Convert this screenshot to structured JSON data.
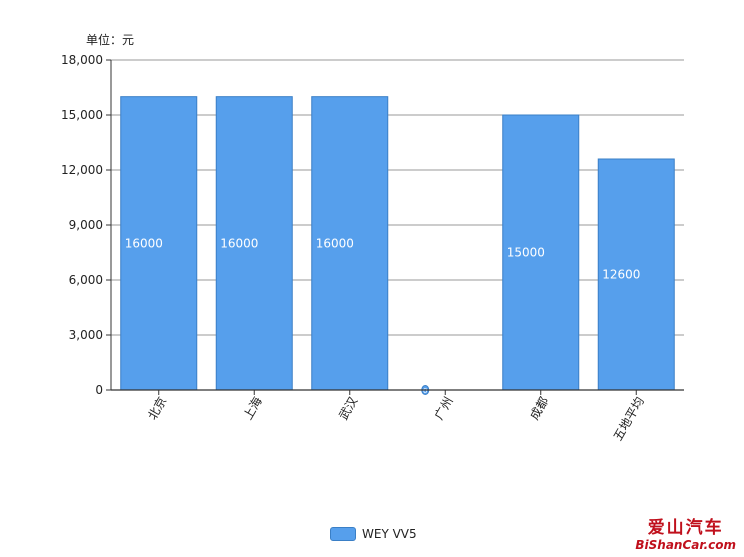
{
  "unit_label": "单位：元",
  "legend": {
    "label": "WEY VV5",
    "color": "#569FEC"
  },
  "watermark": {
    "cn": "爱山汽车",
    "en": "BiShanCar.com"
  },
  "chart_data": {
    "type": "bar",
    "categories": [
      "北京",
      "上海",
      "武汉",
      "广州",
      "成都",
      "五地平均"
    ],
    "series": [
      {
        "name": "WEY VV5",
        "values": [
          16000,
          16000,
          16000,
          0,
          15000,
          12600
        ]
      }
    ],
    "data_labels": [
      "16000",
      "16000",
      "16000",
      "0",
      "15000",
      "12600"
    ],
    "ylim": [
      0,
      18000
    ],
    "yticks": [
      0,
      3000,
      6000,
      9000,
      12000,
      15000,
      18000
    ],
    "ytick_labels": [
      "0",
      "3,000",
      "6,000",
      "9,000",
      "12,000",
      "15,000",
      "18,000"
    ],
    "grid": true,
    "legend_position": "bottom"
  }
}
